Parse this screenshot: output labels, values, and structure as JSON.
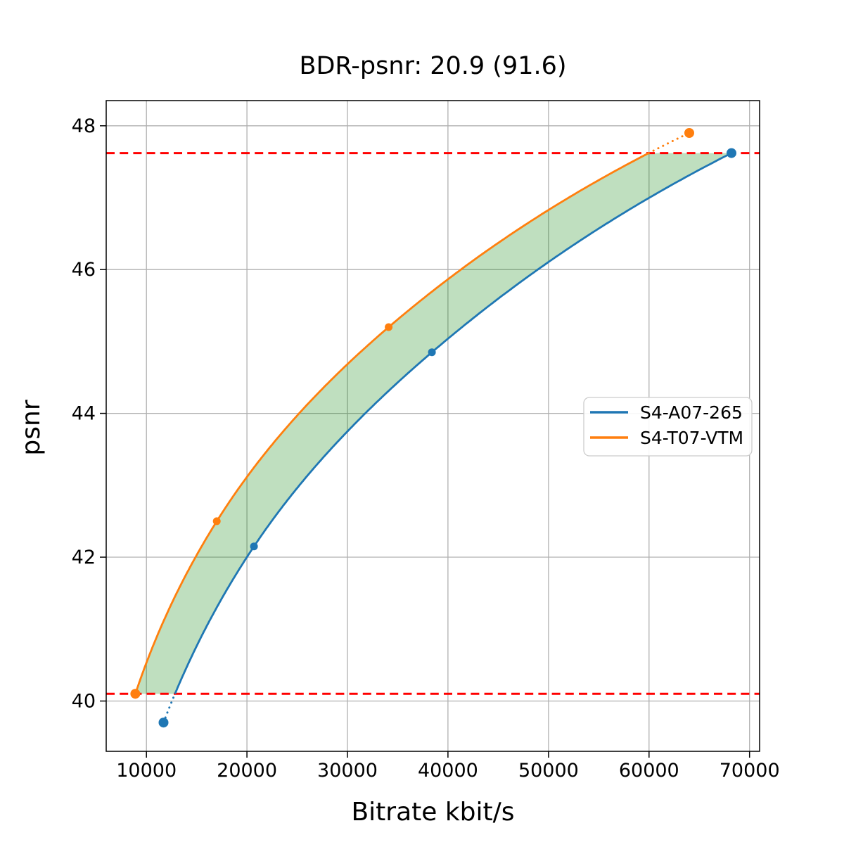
{
  "title": "BDR-psnr: 20.9 (91.6)",
  "chart_data": {
    "type": "line",
    "title": "BDR-psnr: 20.9 (91.6)",
    "xlabel": "Bitrate kbit/s",
    "ylabel": "psnr",
    "xlim": [
      6000,
      71000
    ],
    "ylim": [
      39.3,
      48.35
    ],
    "x_ticks": [
      10000,
      20000,
      30000,
      40000,
      50000,
      60000,
      70000
    ],
    "y_ticks": [
      40,
      42,
      44,
      46,
      48
    ],
    "grid": true,
    "grid_color": "#b0b0b0",
    "legend_position": "center-right",
    "series": [
      {
        "name": "S4-A07-265",
        "color": "#1f77b4",
        "points": [
          [
            11700,
            39.7
          ],
          [
            20700,
            42.15
          ],
          [
            38400,
            44.85
          ],
          [
            68200,
            47.62
          ]
        ]
      },
      {
        "name": "S4-T07-VTM",
        "color": "#ff7f0e",
        "points": [
          [
            8900,
            40.1
          ],
          [
            17000,
            42.5
          ],
          [
            34100,
            45.2
          ],
          [
            64000,
            47.9
          ]
        ]
      }
    ],
    "overlap_lines": {
      "style": "dashed",
      "color": "#ff0000",
      "low": 40.1,
      "high": 47.62
    },
    "shade_between": {
      "color": "#008000",
      "opacity": 0.25
    },
    "bdr": {
      "value": 20.9,
      "secondary": 91.6
    }
  }
}
